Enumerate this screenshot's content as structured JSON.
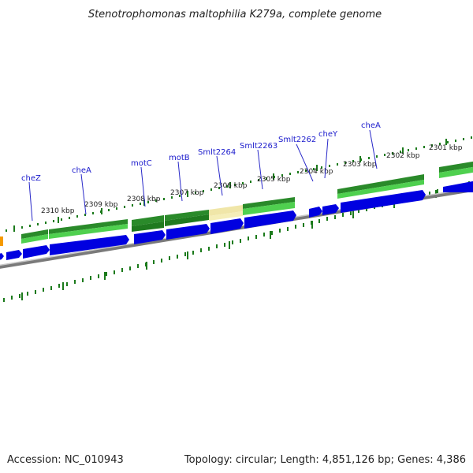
{
  "title": "Stenotrophomonas maltophilia K279a, complete genome",
  "footer": {
    "accession": "Accession: NC_010943",
    "summary": "Topology: circular; Length: 4,851,126 bp; Genes: 4,386"
  },
  "colors": {
    "cds_forward": "#0000e0",
    "gene_dark": "#2a8a2a",
    "gene_light": "#4fd04f",
    "highlight": "#f0e6a8",
    "backbone": "#8c8c8c",
    "tick": "#1b7a1b",
    "gene_label": "#1a1acc",
    "marker": "#f59a00"
  },
  "scale_labels": [
    "2310 kbp",
    "2309 kbp",
    "2308 kbp",
    "2307 kbp",
    "2306 kbp",
    "2305 kbp",
    "2304 kbp",
    "2303 kbp",
    "2302 kbp",
    "2301 kbp"
  ],
  "gene_labels": [
    "cheZ",
    "cheA",
    "motC",
    "motB",
    "Smlt2264",
    "Smlt2263",
    "Smlt2262",
    "cheY",
    "cheA"
  ]
}
